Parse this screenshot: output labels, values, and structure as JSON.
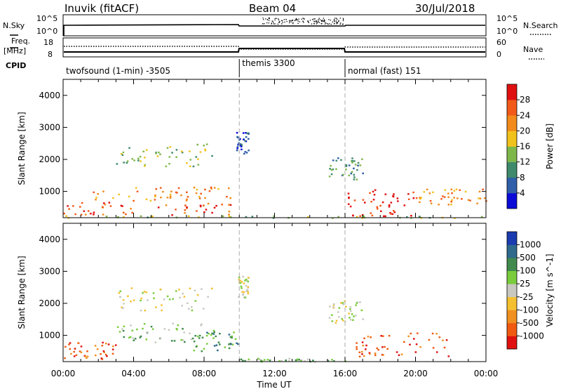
{
  "header": {
    "station": "Inuvik (fitACF)",
    "beam": "Beam 04",
    "date": "30/Jul/2018"
  },
  "top_panels": {
    "nsky_label": "N.Sky",
    "nsky_ticks": [
      "10^5",
      "10^0"
    ],
    "nsearch_label": "N.Search",
    "nsearch_ticks": [
      "10^5",
      "10^0"
    ],
    "freq_label": "Freq.",
    "freq_unit": "[MHz]",
    "freq_ticks": [
      "18",
      "8"
    ],
    "nave_label": "Nave",
    "nave_ticks": [
      "60",
      "0"
    ],
    "cpid_label": "CPID"
  },
  "cpid_segments": [
    {
      "label": "twofsound (1-min) -3505",
      "start_hour": 0,
      "end_hour": 10
    },
    {
      "label": "themis 3300",
      "start_hour": 10,
      "end_hour": 16
    },
    {
      "label": "normal (fast) 151",
      "start_hour": 16,
      "end_hour": 24
    }
  ],
  "x_axis": {
    "label": "Time UT",
    "ticks": [
      "00:00",
      "04:00",
      "08:00",
      "12:00",
      "16:00",
      "20:00",
      "00:00"
    ],
    "range_hours": [
      0,
      24
    ]
  },
  "chart_data": [
    {
      "type": "heatmap",
      "title": "",
      "xlabel": "",
      "ylabel": "Slant Range [km]",
      "ylim": [
        180,
        4500
      ],
      "yticks": [
        "1000",
        "2000",
        "3000",
        "4000"
      ],
      "colorbar_label": "Power [dB]",
      "colorbar_ticks": [
        "4",
        "8",
        "12",
        "16",
        "20",
        "24",
        "28"
      ],
      "colorbar_colors": [
        "#0b0bd8",
        "#2f5fa8",
        "#3f8a6c",
        "#7fb84a",
        "#f2c21c",
        "#f28a1c",
        "#f25a1a",
        "#e01010"
      ],
      "bands": [
        {
          "t0": 0.0,
          "t1": 9.8,
          "r0": 280,
          "r1": 700,
          "level": 6
        },
        {
          "t0": 1.5,
          "t1": 9.5,
          "r0": 720,
          "r1": 1200,
          "level": 5
        },
        {
          "t0": 3.0,
          "t1": 8.5,
          "r0": 1800,
          "r1": 2500,
          "level": 3
        },
        {
          "t0": 9.8,
          "t1": 10.5,
          "r0": 2200,
          "r1": 2900,
          "level": 1
        },
        {
          "t0": 16.0,
          "t1": 20.0,
          "r0": 250,
          "r1": 1100,
          "level": 7
        },
        {
          "t0": 15.0,
          "t1": 17.0,
          "r0": 1400,
          "r1": 2100,
          "level": 2
        },
        {
          "t0": 20.0,
          "t1": 24.0,
          "r0": 600,
          "r1": 1100,
          "level": 5
        },
        {
          "t0": 0.0,
          "t1": 24.0,
          "r0": 190,
          "r1": 260,
          "level": 3
        }
      ]
    },
    {
      "type": "heatmap",
      "title": "",
      "xlabel": "Time UT",
      "ylabel": "Slant Range [km]",
      "ylim": [
        180,
        4500
      ],
      "yticks": [
        "1000",
        "2000",
        "3000",
        "4000"
      ],
      "colorbar_label": "Velocity [m s^-1]",
      "colorbar_ticks": [
        "1000",
        "500",
        "100",
        "25",
        "-25",
        "-100",
        "-500",
        "-1000"
      ],
      "colorbar_colors": [
        "#1b3bb0",
        "#2f6a8c",
        "#3f8a4c",
        "#7acc3c",
        "#c8c8c0",
        "#f5c030",
        "#f09020",
        "#f05a10",
        "#e01010"
      ],
      "bands": [
        {
          "t0": 0.0,
          "t1": 3.0,
          "r0": 280,
          "r1": 800,
          "level": 7
        },
        {
          "t0": 3.0,
          "t1": 8.0,
          "r0": 800,
          "r1": 1400,
          "level": 3
        },
        {
          "t0": 7.0,
          "t1": 10.0,
          "r0": 500,
          "r1": 1200,
          "level": 2
        },
        {
          "t0": 3.0,
          "t1": 8.5,
          "r0": 1800,
          "r1": 2500,
          "level": 4
        },
        {
          "t0": 9.8,
          "t1": 10.5,
          "r0": 2200,
          "r1": 2900,
          "level": 4
        },
        {
          "t0": 16.5,
          "t1": 22.0,
          "r0": 350,
          "r1": 1100,
          "level": 7
        },
        {
          "t0": 15.0,
          "t1": 17.0,
          "r0": 1400,
          "r1": 2100,
          "level": 4
        },
        {
          "t0": 10.0,
          "t1": 16.0,
          "r0": 190,
          "r1": 300,
          "level": 3
        }
      ]
    }
  ]
}
